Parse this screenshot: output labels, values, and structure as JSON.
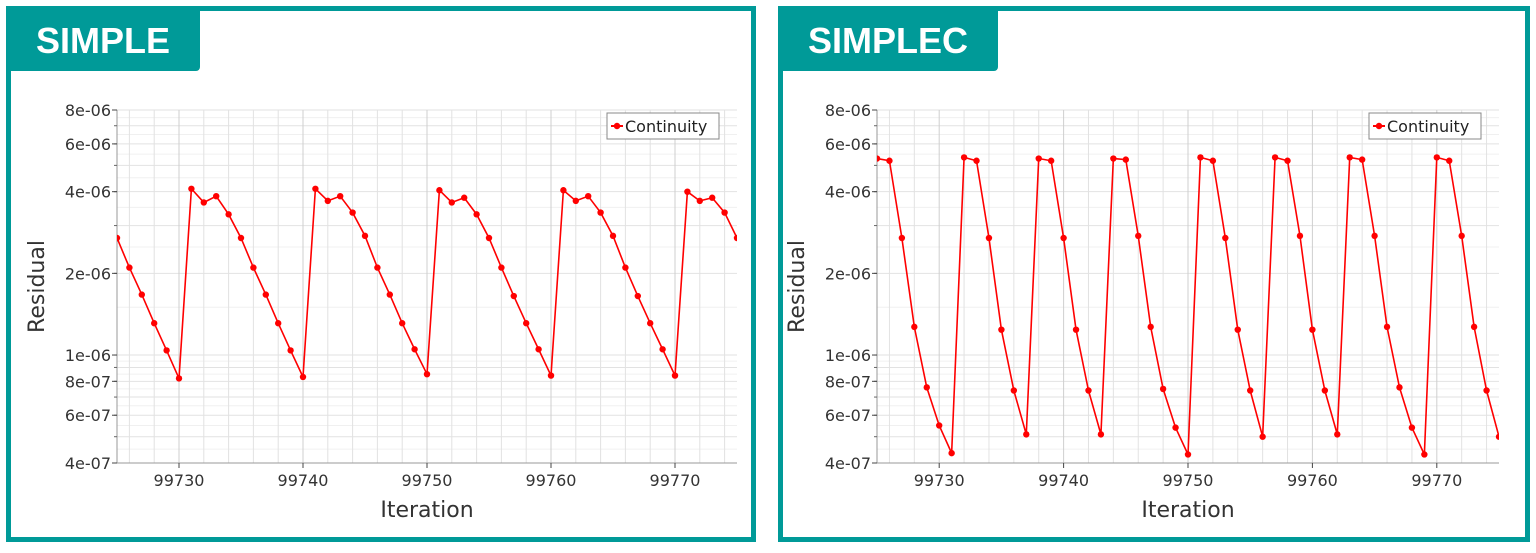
{
  "panels": [
    {
      "title": "SIMPLE"
    },
    {
      "title": "SIMPLEC"
    }
  ],
  "chart_data": [
    {
      "type": "line",
      "title": "SIMPLE",
      "xlabel": "Iteration",
      "ylabel": "Residual",
      "yscale": "log",
      "xlim": [
        99725,
        99775
      ],
      "ylim": [
        4e-07,
        8e-06
      ],
      "grid": true,
      "legend_position": "top-right",
      "xticks": [
        99730,
        99740,
        99750,
        99760,
        99770
      ],
      "yticks": [
        {
          "v": 8e-06,
          "label": "8e-06"
        },
        {
          "v": 6e-06,
          "label": "6e-06"
        },
        {
          "v": 4e-06,
          "label": "4e-06"
        },
        {
          "v": 2e-06,
          "label": "2e-06"
        },
        {
          "v": 1e-06,
          "label": "1e-06"
        },
        {
          "v": 8e-07,
          "label": "8e-07"
        },
        {
          "v": 6e-07,
          "label": "6e-07"
        },
        {
          "v": 4e-07,
          "label": "4e-07"
        }
      ],
      "series": [
        {
          "name": "Continuity",
          "color": "#ff0000",
          "x": [
            99725,
            99726,
            99727,
            99728,
            99729,
            99730,
            99731,
            99732,
            99733,
            99734,
            99735,
            99736,
            99737,
            99738,
            99739,
            99740,
            99741,
            99742,
            99743,
            99744,
            99745,
            99746,
            99747,
            99748,
            99749,
            99750,
            99751,
            99752,
            99753,
            99754,
            99755,
            99756,
            99757,
            99758,
            99759,
            99760,
            99761,
            99762,
            99763,
            99764,
            99765,
            99766,
            99767,
            99768,
            99769,
            99770,
            99771,
            99772,
            99773,
            99774,
            99775
          ],
          "y": [
            2.7e-06,
            2.1e-06,
            1.67e-06,
            1.31e-06,
            1.04e-06,
            8.2e-07,
            4.1e-06,
            3.65e-06,
            3.85e-06,
            3.3e-06,
            2.7e-06,
            2.1e-06,
            1.67e-06,
            1.31e-06,
            1.04e-06,
            8.3e-07,
            4.1e-06,
            3.7e-06,
            3.85e-06,
            3.35e-06,
            2.75e-06,
            2.1e-06,
            1.67e-06,
            1.31e-06,
            1.05e-06,
            8.5e-07,
            4.05e-06,
            3.65e-06,
            3.8e-06,
            3.3e-06,
            2.7e-06,
            2.1e-06,
            1.65e-06,
            1.31e-06,
            1.05e-06,
            8.4e-07,
            4.05e-06,
            3.7e-06,
            3.85e-06,
            3.35e-06,
            2.75e-06,
            2.1e-06,
            1.65e-06,
            1.31e-06,
            1.05e-06,
            8.4e-07,
            4e-06,
            3.7e-06,
            3.8e-06,
            3.35e-06,
            2.7e-06
          ]
        }
      ]
    },
    {
      "type": "line",
      "title": "SIMPLEC",
      "xlabel": "Iteration",
      "ylabel": "Residual",
      "yscale": "log",
      "xlim": [
        99725,
        99775
      ],
      "ylim": [
        4e-07,
        8e-06
      ],
      "grid": true,
      "legend_position": "top-right",
      "xticks": [
        99730,
        99740,
        99750,
        99760,
        99770
      ],
      "yticks": [
        {
          "v": 8e-06,
          "label": "8e-06"
        },
        {
          "v": 6e-06,
          "label": "6e-06"
        },
        {
          "v": 4e-06,
          "label": "4e-06"
        },
        {
          "v": 2e-06,
          "label": "2e-06"
        },
        {
          "v": 1e-06,
          "label": "1e-06"
        },
        {
          "v": 8e-07,
          "label": "8e-07"
        },
        {
          "v": 6e-07,
          "label": "6e-07"
        },
        {
          "v": 4e-07,
          "label": "4e-07"
        }
      ],
      "series": [
        {
          "name": "Continuity",
          "color": "#ff0000",
          "x": [
            99725,
            99726,
            99727,
            99728,
            99729,
            99730,
            99731,
            99732,
            99733,
            99734,
            99735,
            99736,
            99737,
            99738,
            99739,
            99740,
            99741,
            99742,
            99743,
            99744,
            99745,
            99746,
            99747,
            99748,
            99749,
            99750,
            99751,
            99752,
            99753,
            99754,
            99755,
            99756,
            99757,
            99758,
            99759,
            99760,
            99761,
            99762,
            99763,
            99764,
            99765,
            99766,
            99767,
            99768,
            99769,
            99770,
            99771,
            99772,
            99773,
            99774,
            99775
          ],
          "y": [
            5.3e-06,
            5.2e-06,
            2.7e-06,
            1.27e-06,
            7.6e-07,
            5.5e-07,
            4.35e-07,
            5.35e-06,
            5.2e-06,
            2.7e-06,
            1.24e-06,
            7.4e-07,
            5.1e-07,
            5.3e-06,
            5.2e-06,
            2.7e-06,
            1.24e-06,
            7.4e-07,
            5.1e-07,
            5.3e-06,
            5.25e-06,
            2.75e-06,
            1.27e-06,
            7.5e-07,
            5.4e-07,
            4.3e-07,
            5.35e-06,
            5.2e-06,
            2.7e-06,
            1.24e-06,
            7.4e-07,
            5e-07,
            5.35e-06,
            5.2e-06,
            2.75e-06,
            1.24e-06,
            7.4e-07,
            5.1e-07,
            5.35e-06,
            5.25e-06,
            2.75e-06,
            1.27e-06,
            7.6e-07,
            5.4e-07,
            4.3e-07,
            5.35e-06,
            5.2e-06,
            2.75e-06,
            1.27e-06,
            7.4e-07,
            5e-07
          ]
        }
      ]
    }
  ]
}
